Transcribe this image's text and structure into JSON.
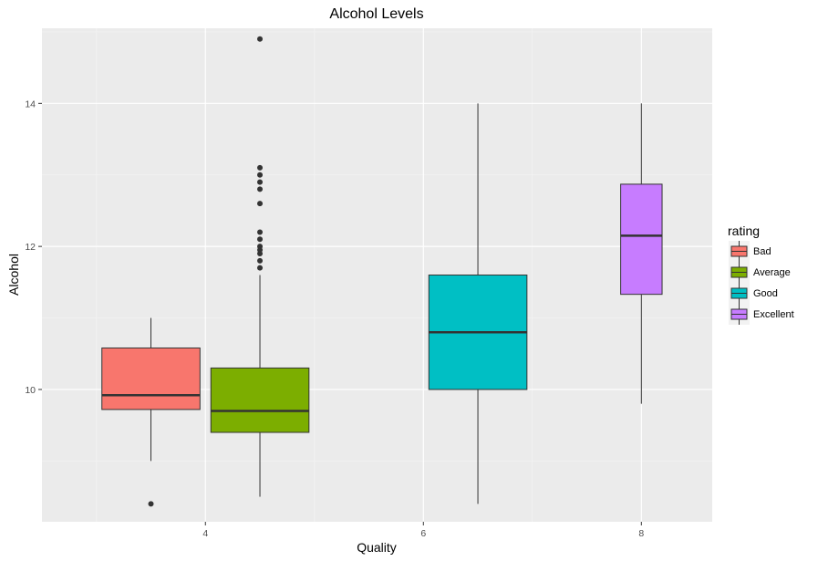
{
  "chart_data": {
    "type": "boxplot",
    "title": "Alcohol Levels",
    "xlabel": "Quality",
    "ylabel": "Alcohol",
    "xlim": [
      2.5,
      8.65
    ],
    "ylim": [
      8.15,
      15.05
    ],
    "x_ticks": [
      4,
      6,
      8
    ],
    "y_ticks": [
      10,
      12,
      14
    ],
    "grid": true,
    "legend": {
      "title": "rating",
      "position": "right",
      "entries": [
        {
          "label": "Bad",
          "color": "#F8766D"
        },
        {
          "label": "Average",
          "color": "#7CAE00"
        },
        {
          "label": "Good",
          "color": "#00BFC4"
        },
        {
          "label": "Excellent",
          "color": "#C77CFF"
        }
      ]
    },
    "series": [
      {
        "name": "Bad",
        "color": "#F8766D",
        "x_center": 3.5,
        "width": 0.9,
        "whisker_low": 9.0,
        "q1": 9.72,
        "median": 9.92,
        "q3": 10.58,
        "whisker_high": 11.0,
        "outliers": [
          8.4
        ]
      },
      {
        "name": "Average",
        "color": "#7CAE00",
        "x_center": 4.5,
        "width": 0.9,
        "whisker_low": 8.5,
        "q1": 9.4,
        "median": 9.7,
        "q3": 10.3,
        "whisker_high": 11.6,
        "outliers": [
          11.7,
          11.8,
          11.9,
          11.95,
          12.0,
          12.1,
          12.2,
          12.6,
          12.8,
          12.9,
          13.0,
          13.1,
          14.9
        ]
      },
      {
        "name": "Good",
        "color": "#00BFC4",
        "x_center": 6.5,
        "width": 0.9,
        "whisker_low": 8.4,
        "q1": 10.0,
        "median": 10.8,
        "q3": 11.6,
        "whisker_high": 14.0,
        "outliers": []
      },
      {
        "name": "Excellent",
        "color": "#C77CFF",
        "x_center": 8.0,
        "width": 0.38,
        "whisker_low": 9.8,
        "q1": 11.33,
        "median": 12.15,
        "q3": 12.87,
        "whisker_high": 14.0,
        "outliers": []
      }
    ]
  }
}
